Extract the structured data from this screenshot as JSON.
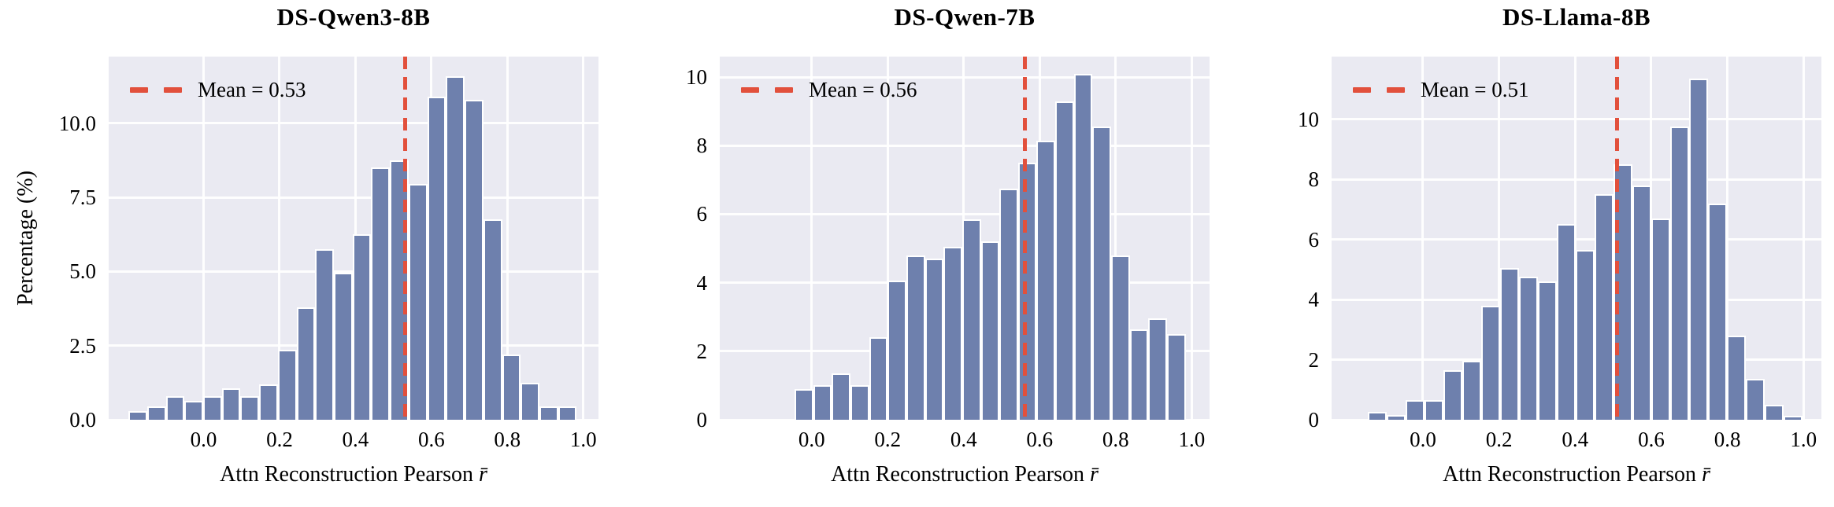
{
  "styles": {
    "bar_fill": "#6e80ad",
    "bar_edge": "#ffffff",
    "mean_line_color": "#e2503c",
    "plot_bg": "#eaeaf2",
    "grid_color": "#ffffff",
    "text_color": "#000000"
  },
  "chart_data": [
    {
      "type": "bar",
      "subtype": "histogram",
      "title": "DS-Qwen3-8B",
      "legend_label": "Mean = 0.53",
      "mean": 0.53,
      "xlabel_text": "Attn Reconstruction Pearson",
      "xlabel_symbol": "r̄",
      "ylabel": "Percentage (%)",
      "x_tick_labels": [
        "0.0",
        "0.2",
        "0.4",
        "0.6",
        "0.8",
        "1.0"
      ],
      "x_tick_values": [
        0,
        0.2,
        0.4,
        0.6,
        0.8,
        1.0
      ],
      "y_tick_labels": [
        "0.0",
        "2.5",
        "5.0",
        "7.5",
        "10.0"
      ],
      "y_tick_values": [
        0,
        2.5,
        5,
        7.5,
        10
      ],
      "xlim": [
        -0.25,
        1.04
      ],
      "ylim": [
        0,
        12.25
      ],
      "bin_start": -0.198,
      "bin_width": 0.0492,
      "values": [
        0.3,
        0.45,
        0.8,
        0.65,
        0.8,
        1.05,
        0.8,
        1.2,
        2.35,
        3.8,
        5.75,
        4.95,
        6.25,
        8.5,
        8.75,
        7.95,
        10.9,
        11.6,
        10.8,
        6.75,
        2.2,
        1.25,
        0.45,
        0.45
      ],
      "grid": true,
      "legend_position": "upper left"
    },
    {
      "type": "bar",
      "subtype": "histogram",
      "title": "DS-Qwen-7B",
      "legend_label": "Mean = 0.56",
      "mean": 0.56,
      "xlabel_text": "Attn Reconstruction Pearson",
      "xlabel_symbol": "r̄",
      "x_tick_labels": [
        "0.0",
        "0.2",
        "0.4",
        "0.6",
        "0.8",
        "1.0"
      ],
      "x_tick_values": [
        0,
        0.2,
        0.4,
        0.6,
        0.8,
        1.0
      ],
      "y_tick_labels": [
        "0",
        "2",
        "4",
        "6",
        "8",
        "10"
      ],
      "y_tick_values": [
        0,
        2,
        4,
        6,
        8,
        10
      ],
      "xlim": [
        -0.242,
        1.047
      ],
      "ylim": [
        0,
        10.6
      ],
      "bin_start": -0.045,
      "bin_width": 0.049,
      "values": [
        0.9,
        1.0,
        1.35,
        1.0,
        2.4,
        4.05,
        4.8,
        4.7,
        5.05,
        5.85,
        5.2,
        6.75,
        7.5,
        8.15,
        9.3,
        10.1,
        8.55,
        4.8,
        2.65,
        2.95,
        2.5
      ],
      "grid": true,
      "legend_position": "upper left"
    },
    {
      "type": "bar",
      "subtype": "histogram",
      "title": "DS-Llama-8B",
      "legend_label": "Mean = 0.51",
      "mean": 0.51,
      "xlabel_text": "Attn Reconstruction Pearson",
      "xlabel_symbol": "r̄",
      "x_tick_labels": [
        "0.0",
        "0.2",
        "0.4",
        "0.6",
        "0.8",
        "1.0"
      ],
      "x_tick_values": [
        0,
        0.2,
        0.4,
        0.6,
        0.8,
        1.0
      ],
      "y_tick_labels": [
        "0",
        "2",
        "4",
        "6",
        "8",
        "10"
      ],
      "y_tick_values": [
        0,
        2,
        4,
        6,
        8,
        10
      ],
      "xlim": [
        -0.24,
        1.047
      ],
      "ylim": [
        0,
        12.08
      ],
      "bin_start": -0.145,
      "bin_width": 0.0497,
      "values": [
        0.25,
        0.15,
        0.65,
        0.65,
        1.65,
        1.95,
        3.8,
        5.05,
        4.75,
        4.6,
        6.5,
        5.65,
        7.5,
        8.5,
        7.8,
        6.7,
        9.75,
        11.35,
        7.2,
        2.8,
        1.35,
        0.5,
        0.12
      ],
      "grid": true,
      "legend_position": "upper left"
    }
  ]
}
